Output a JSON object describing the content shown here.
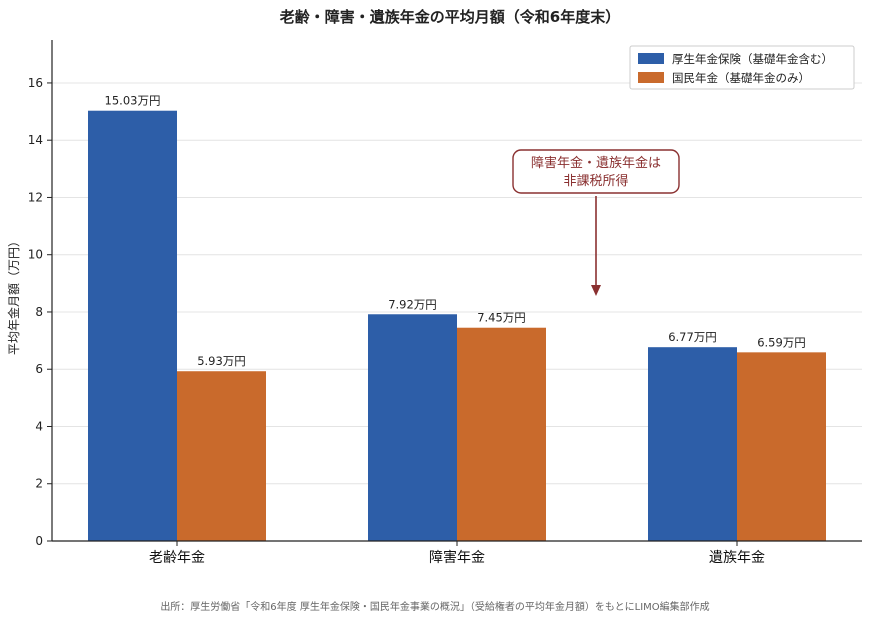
{
  "chart_data": {
    "type": "bar",
    "title": "老齢・障害・遺族年金の平均月額（令和6年度末）",
    "xlabel": "",
    "ylabel": "平均年金月額（万円）",
    "ylim": [
      0,
      17.5
    ],
    "yticks": [
      0,
      2,
      4,
      6,
      8,
      10,
      12,
      14,
      16
    ],
    "grid": true,
    "legend_position": "top-right",
    "categories": [
      "老齢年金",
      "障害年金",
      "遺族年金"
    ],
    "series": [
      {
        "name": "厚生年金保険（基礎年金含む）",
        "color": "#2d5ea8",
        "values": [
          15.03,
          7.92,
          6.77
        ],
        "labels": [
          "15.03万円",
          "7.92万円",
          "6.77万円"
        ]
      },
      {
        "name": "国民年金（基礎年金のみ）",
        "color": "#c96a2c",
        "values": [
          5.93,
          7.45,
          6.59
        ],
        "labels": [
          "5.93万円",
          "7.45万円",
          "6.59万円"
        ]
      }
    ],
    "annotation": {
      "lines": [
        "障害年金・遺族年金は",
        "非課税所得"
      ],
      "color": "#8a3030"
    }
  },
  "source": "出所：厚生労働省「令和6年度 厚生年金保険・国民年金事業の概況」（受給権者の平均年金月額）をもとにLIMO編集部作成"
}
